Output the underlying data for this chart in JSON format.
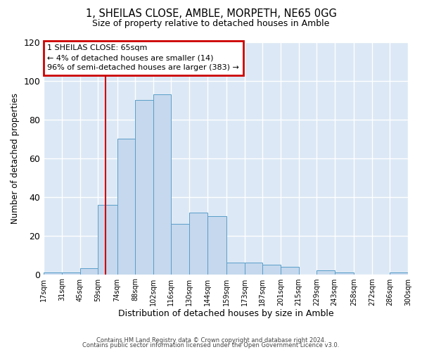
{
  "title": "1, SHEILAS CLOSE, AMBLE, MORPETH, NE65 0GG",
  "subtitle": "Size of property relative to detached houses in Amble",
  "xlabel": "Distribution of detached houses by size in Amble",
  "ylabel": "Number of detached properties",
  "bar_color": "#c5d8ed",
  "bar_edge_color": "#5a9ec9",
  "plot_bg_color": "#dce8f5",
  "fig_bg_color": "#ffffff",
  "grid_color": "#ffffff",
  "annotation_box_color": "#cc0000",
  "vline_color": "#cc0000",
  "vline_x": 65,
  "annotation_line1": "1 SHEILAS CLOSE: 65sqm",
  "annotation_line2": "← 4% of detached houses are smaller (14)",
  "annotation_line3": "96% of semi-detached houses are larger (383) →",
  "bin_edges": [
    17,
    31,
    45,
    59,
    74,
    88,
    102,
    116,
    130,
    144,
    159,
    173,
    187,
    201,
    215,
    229,
    243,
    258,
    272,
    286,
    300
  ],
  "bin_counts": [
    1,
    1,
    3,
    36,
    70,
    90,
    93,
    26,
    32,
    30,
    6,
    6,
    5,
    4,
    0,
    2,
    1,
    0,
    0,
    1
  ],
  "tick_labels": [
    "17sqm",
    "31sqm",
    "45sqm",
    "59sqm",
    "74sqm",
    "88sqm",
    "102sqm",
    "116sqm",
    "130sqm",
    "144sqm",
    "159sqm",
    "173sqm",
    "187sqm",
    "201sqm",
    "215sqm",
    "229sqm",
    "243sqm",
    "258sqm",
    "272sqm",
    "286sqm",
    "300sqm"
  ],
  "ylim": [
    0,
    120
  ],
  "yticks": [
    0,
    20,
    40,
    60,
    80,
    100,
    120
  ],
  "footer_line1": "Contains HM Land Registry data © Crown copyright and database right 2024.",
  "footer_line2": "Contains public sector information licensed under the Open Government Licence v3.0."
}
